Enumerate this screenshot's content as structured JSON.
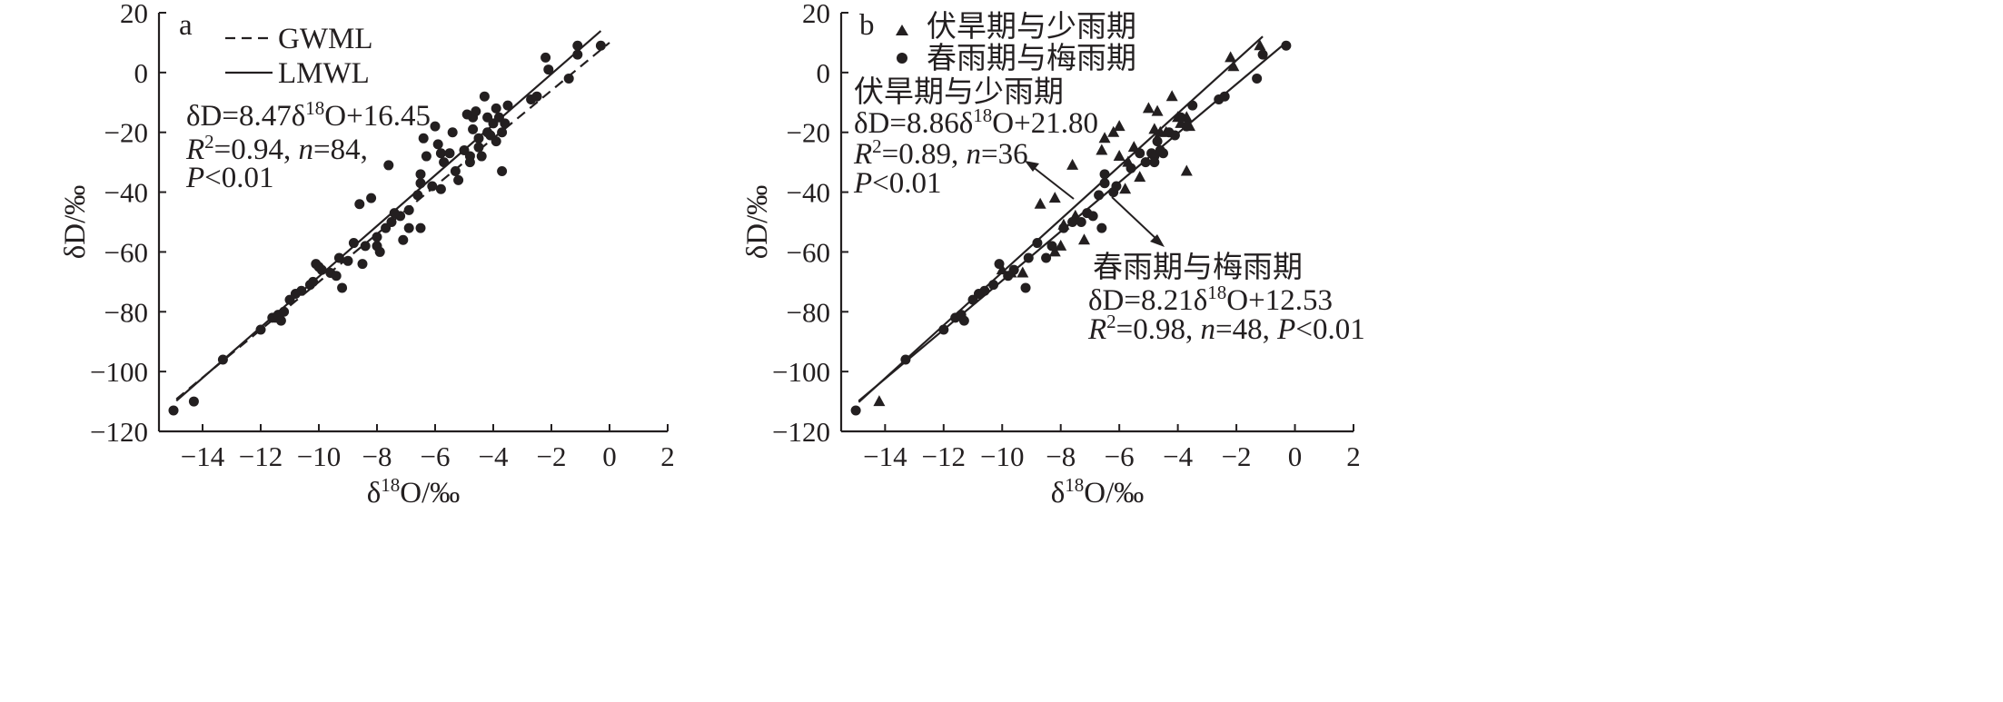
{
  "chart_data": [
    {
      "panel_label": "a",
      "type": "scatter",
      "xlabel": "δ18O/‰",
      "ylabel": "δD/‰",
      "xlim": [
        -15.5,
        2
      ],
      "ylim": [
        -120,
        20
      ],
      "xticks": [
        -14,
        -12,
        -10,
        -8,
        -6,
        -4,
        -2,
        0,
        2
      ],
      "yticks": [
        20,
        0,
        -20,
        -40,
        -60,
        -80,
        -100,
        -120
      ],
      "grid": false,
      "legend": {
        "placement": "top-left",
        "entries": [
          {
            "label": "GWML",
            "style": "dashed"
          },
          {
            "label": "LMWL",
            "style": "solid"
          }
        ]
      },
      "lines": [
        {
          "name": "GWML",
          "style": "dashed",
          "slope": 8,
          "intercept": 10,
          "x_range": [
            -14.9,
            0
          ]
        },
        {
          "name": "LMWL",
          "style": "solid",
          "slope": 8.47,
          "intercept": 16.45,
          "x_range": [
            -14.9,
            -0.3
          ]
        }
      ],
      "annotation": {
        "eq_prefix": "δD=8.47δ",
        "eq_sup": "18",
        "eq_suffix": "O+16.45",
        "r2_value": "=0.94, ",
        "n_value": "=84,",
        "p_value": "<0.01"
      },
      "series": [
        {
          "name": "",
          "marker": "circle",
          "points": [
            [
              -15.0,
              -113
            ],
            [
              -14.3,
              -110
            ],
            [
              -13.3,
              -96
            ],
            [
              -11.6,
              -82
            ],
            [
              -11.5,
              -82
            ],
            [
              -11.4,
              -81
            ],
            [
              -11.3,
              -83
            ],
            [
              -11.0,
              -76
            ],
            [
              -10.6,
              -73
            ],
            [
              -10.3,
              -71
            ],
            [
              -10.1,
              -64
            ],
            [
              -10.0,
              -65
            ],
            [
              -9.6,
              -67
            ],
            [
              -9.3,
              -62
            ],
            [
              -9.2,
              -72
            ],
            [
              -9.0,
              -63
            ],
            [
              -8.8,
              -57
            ],
            [
              -8.6,
              -44
            ],
            [
              -8.5,
              -64
            ],
            [
              -8.4,
              -58
            ],
            [
              -8.2,
              -42
            ],
            [
              -8.0,
              -58
            ],
            [
              -7.9,
              -60
            ],
            [
              -7.5,
              -50
            ],
            [
              -7.2,
              -48
            ],
            [
              -7.1,
              -56
            ],
            [
              -6.9,
              -52
            ],
            [
              -7.6,
              -31
            ],
            [
              -6.6,
              -41
            ],
            [
              -6.5,
              -52
            ],
            [
              -6.5,
              -37
            ],
            [
              -6.5,
              -34
            ],
            [
              -6.4,
              -22
            ],
            [
              -6.3,
              -28
            ],
            [
              -6.0,
              -18
            ],
            [
              -5.9,
              -24
            ],
            [
              -5.8,
              -27
            ],
            [
              -5.8,
              -39
            ],
            [
              -5.5,
              -27
            ],
            [
              -5.4,
              -20
            ],
            [
              -5.2,
              -36
            ],
            [
              -5.0,
              -26
            ],
            [
              -4.7,
              -15
            ],
            [
              -4.7,
              -19
            ],
            [
              -4.5,
              -22
            ],
            [
              -4.3,
              -8
            ],
            [
              -4.2,
              -20
            ],
            [
              -4.0,
              -17
            ],
            [
              -3.9,
              -12
            ],
            [
              -3.8,
              -15
            ],
            [
              -3.7,
              -20
            ],
            [
              -3.6,
              -17
            ],
            [
              -4.8,
              -28
            ],
            [
              -4.8,
              -30
            ],
            [
              -4.6,
              -13
            ],
            [
              -4.4,
              -28
            ],
            [
              -4.2,
              -15
            ],
            [
              -4.1,
              -21
            ],
            [
              -3.7,
              -33
            ],
            [
              -3.5,
              -11
            ],
            [
              -2.7,
              -9
            ],
            [
              -2.5,
              -8
            ],
            [
              -2.2,
              5
            ],
            [
              -2.1,
              1
            ],
            [
              -1.4,
              -2
            ],
            [
              -1.1,
              9
            ],
            [
              -1.1,
              6
            ],
            [
              -0.3,
              9
            ],
            [
              -5.7,
              -30
            ],
            [
              -6.1,
              -38
            ],
            [
              -7.4,
              -47
            ],
            [
              -8.0,
              -55
            ],
            [
              -9.4,
              -68
            ],
            [
              -10.2,
              -70
            ],
            [
              -10.8,
              -74
            ],
            [
              -11.2,
              -80
            ],
            [
              -12.0,
              -86
            ],
            [
              -4.9,
              -14
            ],
            [
              -3.9,
              -23
            ],
            [
              -6.9,
              -46
            ],
            [
              -5.3,
              -33
            ],
            [
              -4.5,
              -25
            ],
            [
              -7.7,
              -52
            ],
            [
              -9.9,
              -66
            ]
          ]
        }
      ]
    },
    {
      "panel_label": "b",
      "type": "scatter",
      "xlabel": "δ18O/‰",
      "ylabel": "δD/‰",
      "xlim": [
        -15.5,
        2
      ],
      "ylim": [
        -120,
        20
      ],
      "xticks": [
        -14,
        -12,
        -10,
        -8,
        -6,
        -4,
        -2,
        0,
        2
      ],
      "yticks": [
        20,
        0,
        -20,
        -40,
        -60,
        -80,
        -100,
        -120
      ],
      "grid": false,
      "legend": {
        "placement": "top-left",
        "entries": [
          {
            "label": "伏旱期与少雨期",
            "marker": "triangle"
          },
          {
            "label": "春雨期与梅雨期",
            "marker": "circle"
          }
        ]
      },
      "lines": [
        {
          "name": "伏旱期与少雨期",
          "style": "solid",
          "slope": 8.86,
          "intercept": 21.8,
          "x_range": [
            -14.9,
            -1.1
          ]
        },
        {
          "name": "春雨期与梅雨期",
          "style": "solid",
          "slope": 8.21,
          "intercept": 12.53,
          "x_range": [
            -14.9,
            -0.3
          ]
        }
      ],
      "annotations": [
        {
          "title": "伏旱期与少雨期",
          "eq_prefix": "δD=8.86δ",
          "eq_sup": "18",
          "eq_suffix": "O+21.80",
          "r2_value": "=0.89, ",
          "n_value": "=36",
          "p_value": "<0.01"
        },
        {
          "title": "春雨期与梅雨期",
          "eq_prefix": "δD=8.21δ",
          "eq_sup": "18",
          "eq_suffix": "O+12.53",
          "r2_value": "=0.98, ",
          "n_value": "=48, ",
          "p_value": "<0.01"
        }
      ],
      "series": [
        {
          "name": "伏旱期与少雨期",
          "marker": "triangle",
          "points": [
            [
              -14.2,
              -110
            ],
            [
              -8.7,
              -44
            ],
            [
              -8.2,
              -42
            ],
            [
              -8.0,
              -58
            ],
            [
              -7.9,
              -51
            ],
            [
              -7.6,
              -31
            ],
            [
              -7.2,
              -56
            ],
            [
              -6.5,
              -22
            ],
            [
              -6.2,
              -20
            ],
            [
              -6.0,
              -18
            ],
            [
              -5.8,
              -39
            ],
            [
              -5.7,
              -30
            ],
            [
              -5.5,
              -25
            ],
            [
              -5.3,
              -35
            ],
            [
              -5.0,
              -12
            ],
            [
              -4.7,
              -13
            ],
            [
              -4.6,
              -20
            ],
            [
              -4.4,
              -20
            ],
            [
              -4.2,
              -8
            ],
            [
              -4.0,
              -15
            ],
            [
              -3.9,
              -17
            ],
            [
              -3.7,
              -15
            ],
            [
              -3.7,
              -33
            ],
            [
              -3.6,
              -18
            ],
            [
              -2.2,
              5
            ],
            [
              -2.1,
              2
            ],
            [
              -1.2,
              9
            ],
            [
              -9.3,
              -67
            ],
            [
              -9.7,
              -67
            ],
            [
              -8.2,
              -60
            ],
            [
              -6.6,
              -26
            ],
            [
              -6.0,
              -28
            ],
            [
              -4.8,
              -19
            ],
            [
              -10.0,
              -66
            ],
            [
              -11.4,
              -81
            ],
            [
              -7.5,
              -48
            ]
          ]
        },
        {
          "name": "春雨期与梅雨期",
          "marker": "circle",
          "points": [
            [
              -15.0,
              -113
            ],
            [
              -13.3,
              -96
            ],
            [
              -11.6,
              -82
            ],
            [
              -11.4,
              -81
            ],
            [
              -11.3,
              -83
            ],
            [
              -11.0,
              -76
            ],
            [
              -10.6,
              -73
            ],
            [
              -10.3,
              -71
            ],
            [
              -10.1,
              -64
            ],
            [
              -9.6,
              -66
            ],
            [
              -9.2,
              -72
            ],
            [
              -9.1,
              -62
            ],
            [
              -8.8,
              -57
            ],
            [
              -8.5,
              -62
            ],
            [
              -7.9,
              -52
            ],
            [
              -7.6,
              -50
            ],
            [
              -7.3,
              -50
            ],
            [
              -7.1,
              -47
            ],
            [
              -6.9,
              -48
            ],
            [
              -6.7,
              -41
            ],
            [
              -6.6,
              -52
            ],
            [
              -6.5,
              -37
            ],
            [
              -6.5,
              -34
            ],
            [
              -6.2,
              -40
            ],
            [
              -5.6,
              -32
            ],
            [
              -5.3,
              -27
            ],
            [
              -4.9,
              -27
            ],
            [
              -4.8,
              -28
            ],
            [
              -4.8,
              -30
            ],
            [
              -4.7,
              -23
            ],
            [
              -4.5,
              -27
            ],
            [
              -4.3,
              -20
            ],
            [
              -4.1,
              -21
            ],
            [
              -3.9,
              -15
            ],
            [
              -3.7,
              -18
            ],
            [
              -3.5,
              -11
            ],
            [
              -2.6,
              -9
            ],
            [
              -2.4,
              -8
            ],
            [
              -1.3,
              -2
            ],
            [
              -1.1,
              6
            ],
            [
              -0.3,
              9
            ],
            [
              -6.1,
              -38
            ],
            [
              -5.1,
              -30
            ],
            [
              -4.6,
              -26
            ],
            [
              -10.8,
              -74
            ],
            [
              -12.0,
              -86
            ],
            [
              -8.3,
              -58
            ],
            [
              -9.8,
              -68
            ]
          ]
        }
      ]
    }
  ]
}
